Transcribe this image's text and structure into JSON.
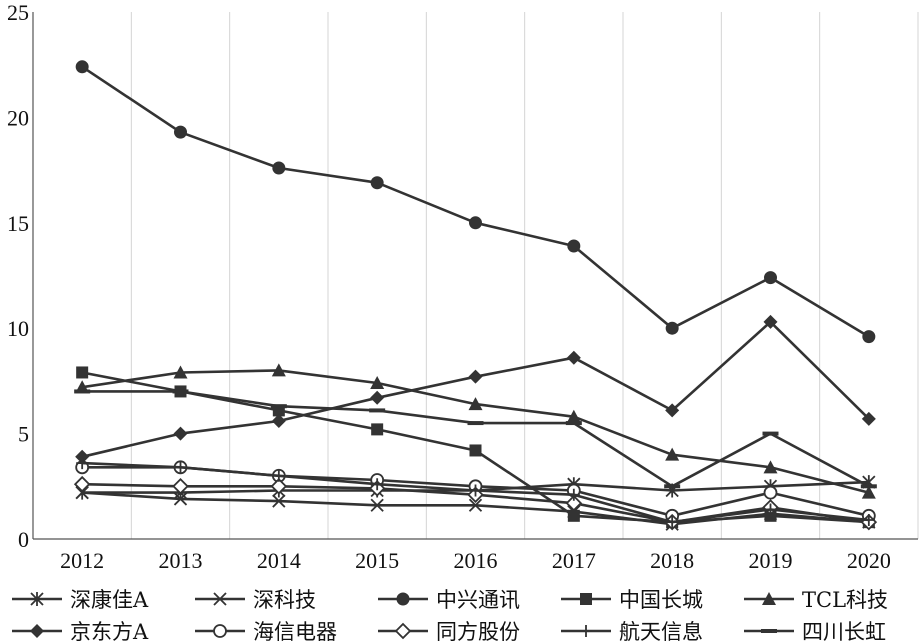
{
  "chart_data": {
    "type": "line",
    "title": "",
    "xlabel": "",
    "ylabel": "",
    "x": [
      "2012",
      "2013",
      "2014",
      "2015",
      "2016",
      "2017",
      "2018",
      "2019",
      "2020"
    ],
    "ylim": [
      0,
      25
    ],
    "yticks": [
      "0",
      "5",
      "10",
      "15",
      "20",
      "25"
    ],
    "grid": "vertical",
    "legend_position": "bottom",
    "line_color": "#333333",
    "series": [
      {
        "name": "深康佳A",
        "marker": "asterisk",
        "values": [
          2.2,
          2.2,
          2.3,
          2.3,
          2.3,
          2.6,
          2.3,
          2.5,
          2.7
        ]
      },
      {
        "name": "深科技",
        "marker": "x",
        "values": [
          2.2,
          1.9,
          1.8,
          1.6,
          1.6,
          1.3,
          0.7,
          1.2,
          0.8
        ]
      },
      {
        "name": "中兴通讯",
        "marker": "circle-filled",
        "values": [
          22.4,
          19.3,
          17.6,
          16.9,
          15.0,
          13.9,
          10.0,
          12.4,
          9.6
        ]
      },
      {
        "name": "中国长城",
        "marker": "square-filled",
        "values": [
          7.9,
          7.0,
          6.1,
          5.2,
          4.2,
          1.1,
          0.8,
          1.1,
          0.8
        ]
      },
      {
        "name": "TCL科技",
        "marker": "triangle-filled",
        "values": [
          7.2,
          7.9,
          8.0,
          7.4,
          6.4,
          5.8,
          4.0,
          3.4,
          2.2
        ]
      },
      {
        "name": "京东方A",
        "marker": "diamond-filled",
        "values": [
          3.9,
          5.0,
          5.6,
          6.7,
          7.7,
          8.6,
          6.1,
          10.3,
          5.7
        ]
      },
      {
        "name": "海信电器",
        "marker": "circle-open",
        "values": [
          3.4,
          3.4,
          3.0,
          2.8,
          2.5,
          2.3,
          1.1,
          2.2,
          1.1
        ]
      },
      {
        "name": "同方股份",
        "marker": "diamond-open",
        "values": [
          2.6,
          2.5,
          2.5,
          2.4,
          2.1,
          1.7,
          0.8,
          1.5,
          0.8
        ]
      },
      {
        "name": "航天信息",
        "marker": "plus",
        "values": [
          3.6,
          3.4,
          3.0,
          2.6,
          2.3,
          2.1,
          0.8,
          1.4,
          0.9
        ]
      },
      {
        "name": "四川长虹",
        "marker": "dash",
        "values": [
          7.0,
          7.0,
          6.3,
          6.1,
          5.5,
          5.5,
          2.5,
          5.0,
          2.5
        ]
      }
    ]
  }
}
